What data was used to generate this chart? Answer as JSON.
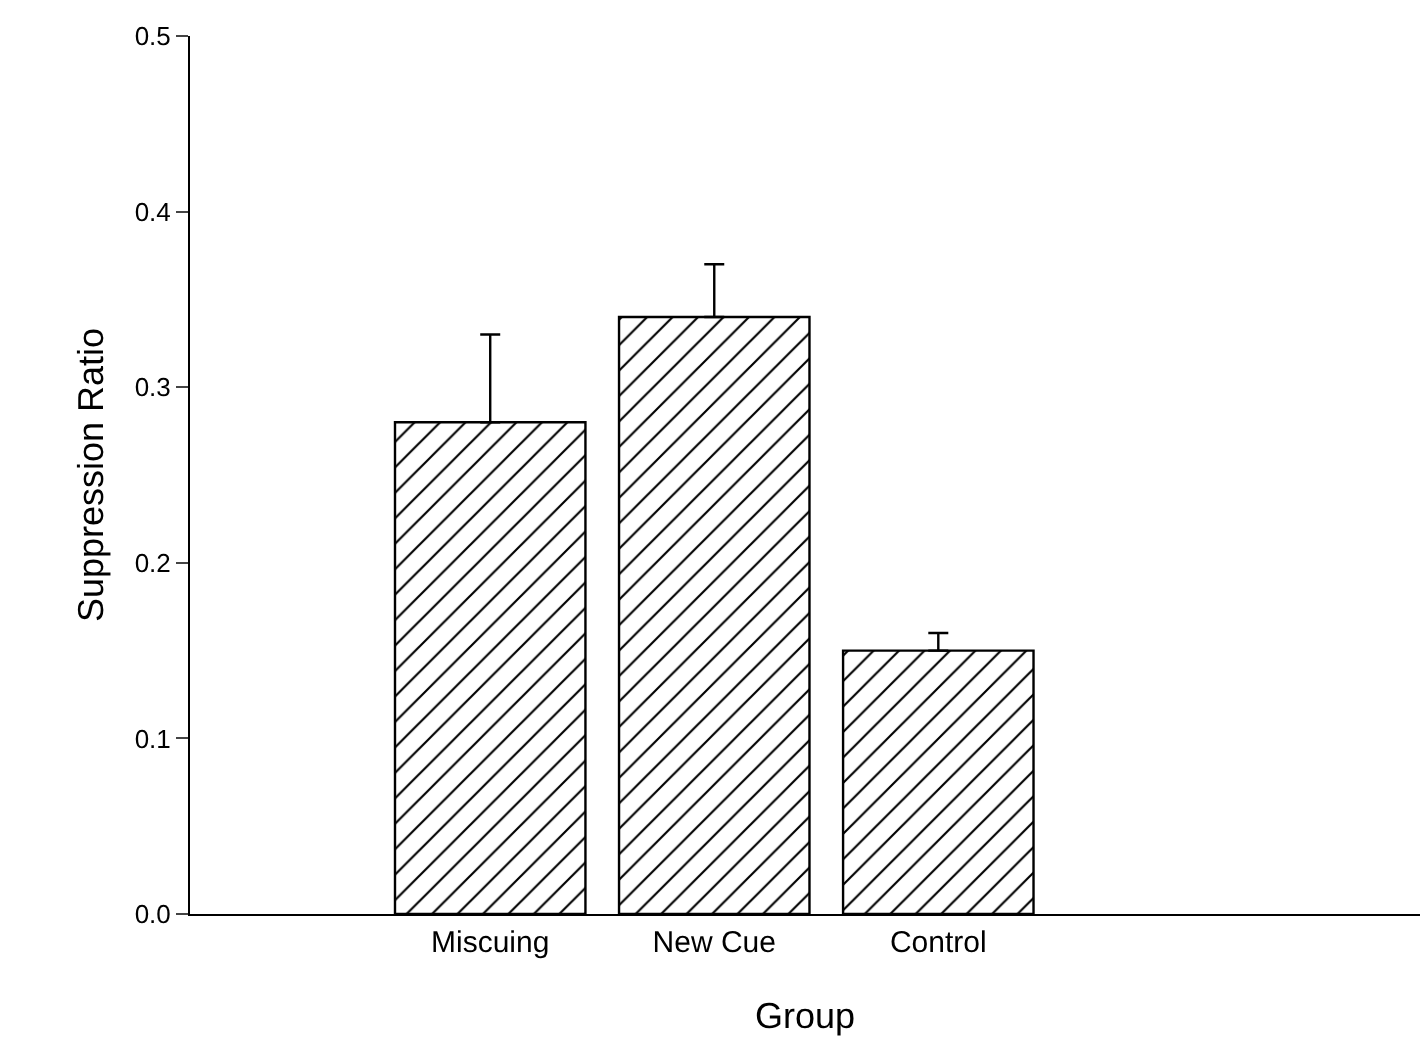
{
  "chart_data": {
    "type": "bar",
    "xlabel": "Group",
    "ylabel": "Suppression Ratio",
    "categories": [
      "Miscuing",
      "New Cue",
      "Control"
    ],
    "values": [
      0.28,
      0.34,
      0.15
    ],
    "errors": [
      [
        0.28,
        0.33
      ],
      [
        0.34,
        0.37
      ],
      [
        0.15,
        0.16
      ]
    ],
    "color": "#000000",
    "ylim": [
      0,
      0.5
    ],
    "yticks": [
      {
        "value": 0,
        "label": "0.0"
      },
      0.1,
      0.2,
      0.3,
      0.4,
      0.5
    ]
  }
}
